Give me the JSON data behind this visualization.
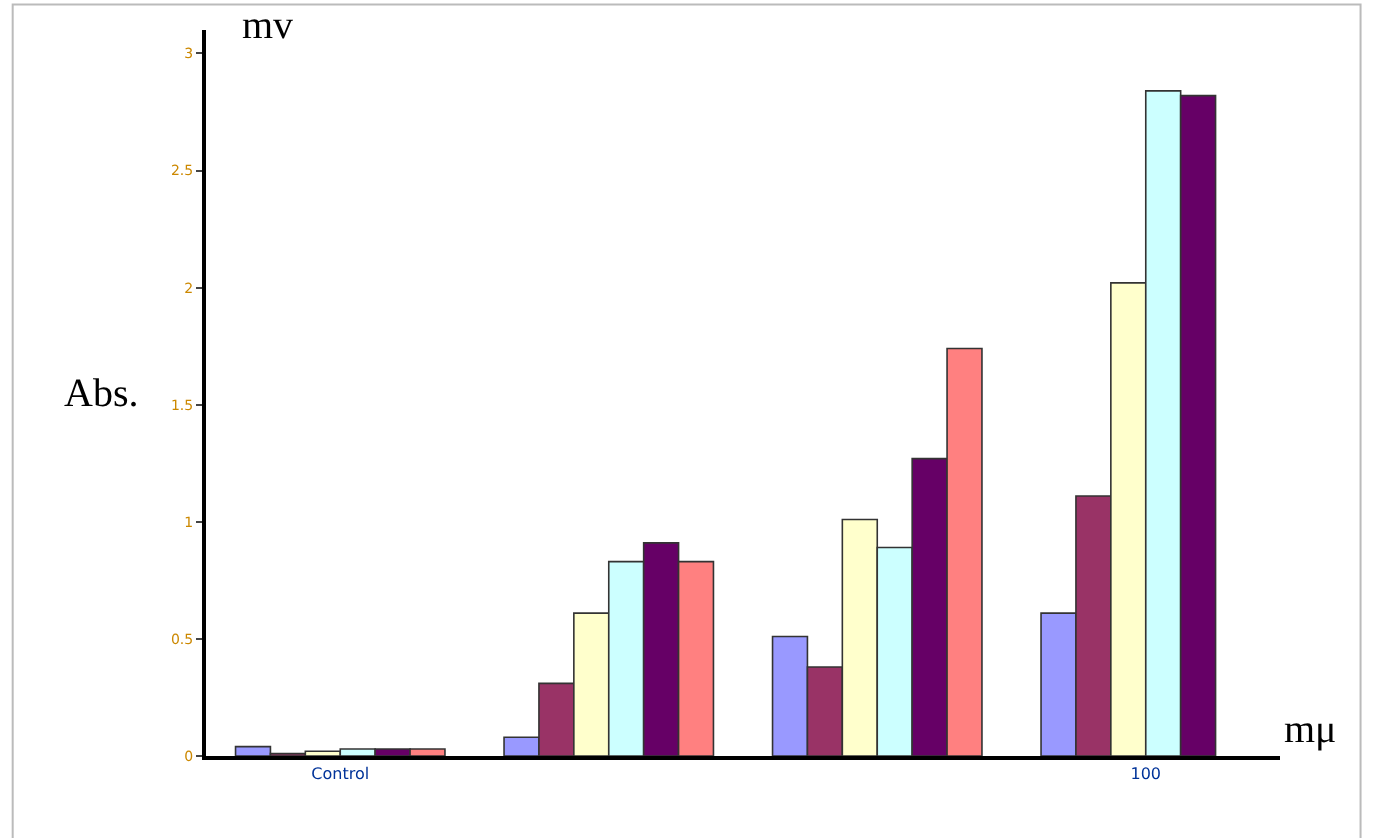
{
  "chart_data": {
    "type": "bar",
    "xlabel": "mμ",
    "ylabel": "Abs.",
    "annotations": [
      "mv"
    ],
    "categories": [
      "Control",
      null,
      null,
      "100"
    ],
    "series": [
      {
        "color": "#9999ff",
        "values": [
          0.04,
          0.08,
          0.51,
          0.61
        ]
      },
      {
        "color": "#993366",
        "values": [
          0.01,
          0.31,
          0.38,
          1.11
        ]
      },
      {
        "color": "#ffffcc",
        "values": [
          0.02,
          0.61,
          1.01,
          2.02
        ]
      },
      {
        "color": "#ccffff",
        "values": [
          0.03,
          0.83,
          0.89,
          2.84
        ]
      },
      {
        "color": "#660066",
        "values": [
          0.03,
          0.91,
          1.27,
          2.82
        ]
      },
      {
        "color": "#ff8080",
        "values": [
          0.03,
          0.83,
          1.74,
          null
        ]
      }
    ],
    "ylim": [
      0,
      3.1
    ],
    "yticks": [
      0,
      0.5,
      1,
      1.5,
      2,
      2.5,
      3
    ],
    "grid": false
  }
}
